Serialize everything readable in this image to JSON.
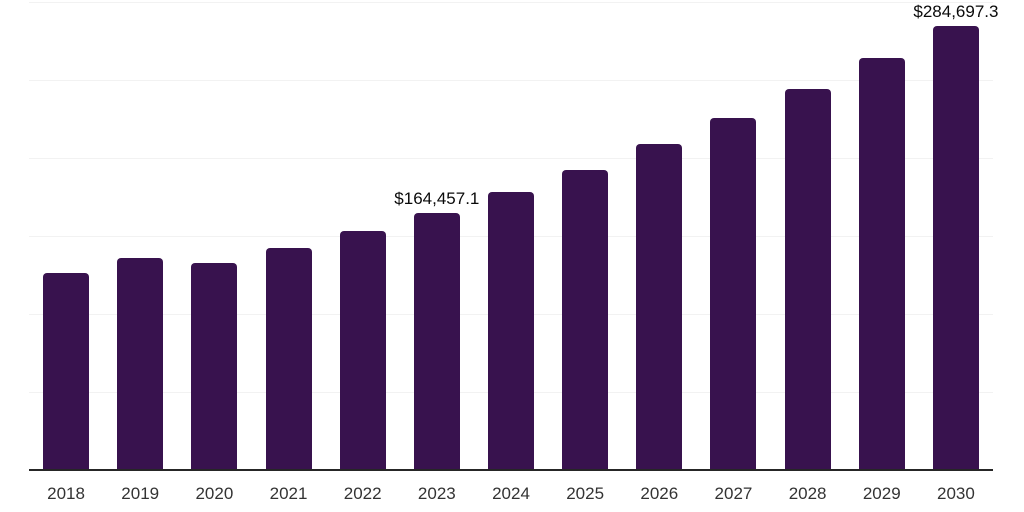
{
  "chart_data": {
    "type": "bar",
    "title": "",
    "xlabel": "",
    "ylabel": "",
    "categories": [
      "2018",
      "2019",
      "2020",
      "2021",
      "2022",
      "2023",
      "2024",
      "2025",
      "2026",
      "2027",
      "2028",
      "2029",
      "2030"
    ],
    "values": [
      126000,
      135600,
      132400,
      142100,
      152900,
      164457.1,
      178000,
      192500,
      208700,
      225400,
      244100,
      263900,
      284697.3
    ],
    "data_labels": [
      {
        "index": 5,
        "text": "$164,457.1"
      },
      {
        "index": 12,
        "text": "$284,697.3"
      }
    ],
    "ylim": [
      0,
      300000
    ],
    "gridline_step": 50000,
    "grid": "horizontal-only",
    "y_axis_tick_labels": "hidden",
    "legend": "none",
    "bar_color": "#38124e"
  },
  "style": {
    "background_color": "#ffffff",
    "gridline_color": "#f2f2f2",
    "axis_line_color": "#262626",
    "tick_label_color": "#333333",
    "data_label_color": "#0a0a0a"
  }
}
